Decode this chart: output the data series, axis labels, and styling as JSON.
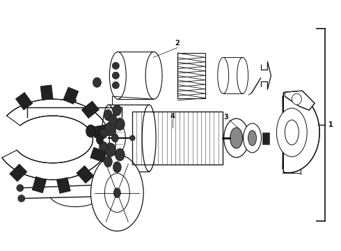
{
  "background_color": "#ffffff",
  "line_color": "#111111",
  "label_color": "#000000",
  "figsize": [
    4.9,
    3.6
  ],
  "dpi": 100
}
